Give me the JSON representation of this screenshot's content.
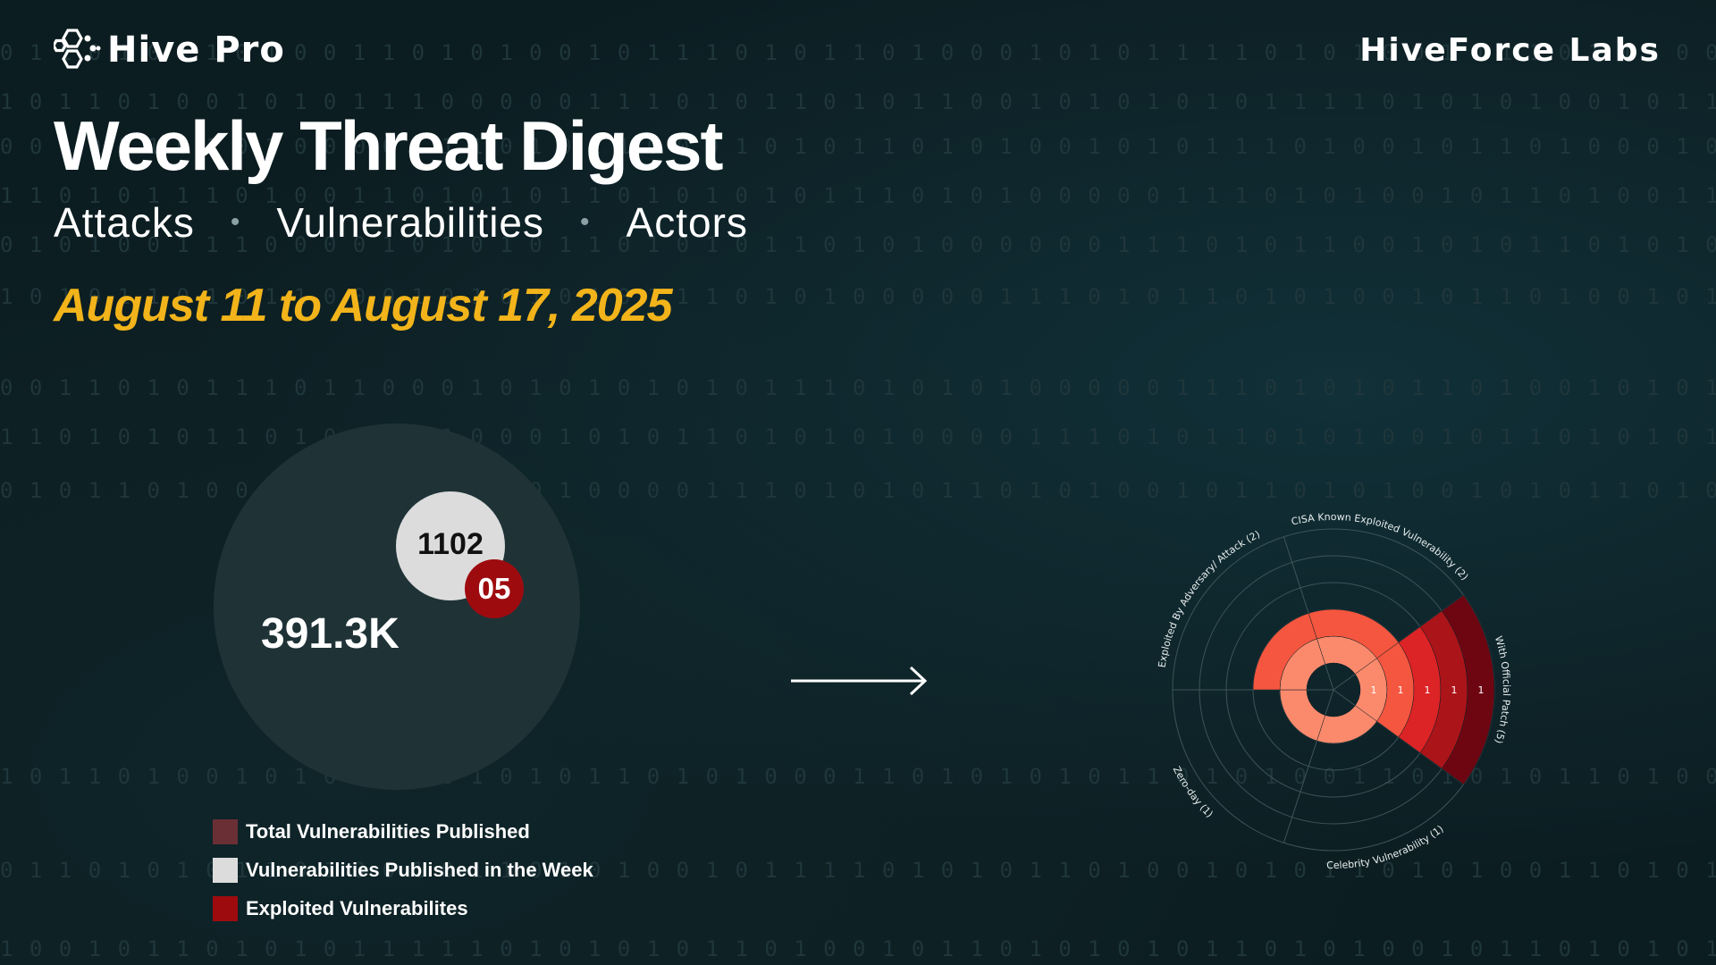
{
  "header": {
    "logo_text": "Hive Pro",
    "logo_icon": "hexagon-cluster-icon",
    "labs_text": "HiveForce Labs"
  },
  "hero": {
    "title": "Weekly Threat Digest",
    "subtitle_items": [
      "Attacks",
      "Vulnerabilities",
      "Actors"
    ],
    "date_range": "August 11 to August 17, 2025"
  },
  "colors": {
    "background": "#0c1d21",
    "accent_gold": "#f2b41a",
    "exploited_red": "#9e0b0f",
    "total_swatch": "#6a2f35",
    "week_swatch": "#dcdcdc"
  },
  "bubble_chart": {
    "total_value": "391.3K",
    "week_value": "1102",
    "exploited_value": "05",
    "legend": [
      {
        "label": "Total Vulnerabilities Published",
        "color": "#6a2f35"
      },
      {
        "label": "Vulnerabilities Published in the Week",
        "color": "#dcdcdc"
      },
      {
        "label": "Exploited Vulnerabilites",
        "color": "#9e0b0f"
      }
    ]
  },
  "chart_data": {
    "type": "polar-bar",
    "rmax": 5,
    "categories": [
      {
        "label": "CISA Known Exploited Vulnerability (2)",
        "value": 2
      },
      {
        "label": "With Official Patch (5)",
        "value": 5
      },
      {
        "label": "Celebrity Vulnerability (1)",
        "value": 1
      },
      {
        "label": "Zero-day (1)",
        "value": 1
      },
      {
        "label": "Exploited By Adversary/ Attack (2)",
        "value": 2
      }
    ],
    "ring_labels": [
      "1",
      "1",
      "1",
      "1",
      "1"
    ],
    "ring_colors": [
      "#fb8a6d",
      "#f5563f",
      "#dc2326",
      "#ab1419",
      "#6e0612"
    ],
    "grid": true
  }
}
